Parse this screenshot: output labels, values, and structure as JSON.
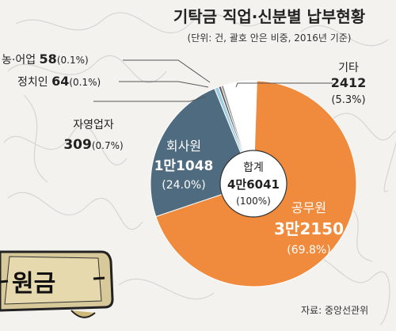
{
  "chart_data": {
    "type": "pie",
    "title": "기탁금 직업·신분별 납부현황",
    "subtitle": "(단위: 건, 괄호 안은 비중, 2016년 기준)",
    "center": {
      "label": "합계",
      "value": "4만6041",
      "pct": "(100%)"
    },
    "source": "자료: 중앙선관위",
    "slices": [
      {
        "label": "공무원",
        "value": 32150,
        "value_text": "3만2150",
        "pct": "(69.8%)",
        "color": "#f08a3c"
      },
      {
        "label": "회사원",
        "value": 11048,
        "value_text": "1만1048",
        "pct": "(24.0%)",
        "color": "#4e6b7f"
      },
      {
        "label": "자영업자",
        "value": 309,
        "value_text": "309",
        "pct": "(0.7%)",
        "color": "#9fcde3"
      },
      {
        "label": "정치인",
        "value": 64,
        "value_text": "64",
        "pct": "(0.1%)",
        "color": "#5a5a5a"
      },
      {
        "label": "농·어업",
        "value": 58,
        "value_text": "58",
        "pct": "(0.1%)",
        "color": "#9a9a9a"
      },
      {
        "label": "기타",
        "value": 2412,
        "value_text": "2412",
        "pct": "(5.3%)",
        "color": "#ffffff"
      }
    ]
  },
  "illustration": {
    "text": "원금"
  },
  "colors": {
    "background": "#f3f2ee",
    "accent": "#f08a3c",
    "dark": "#4e6b7f"
  }
}
